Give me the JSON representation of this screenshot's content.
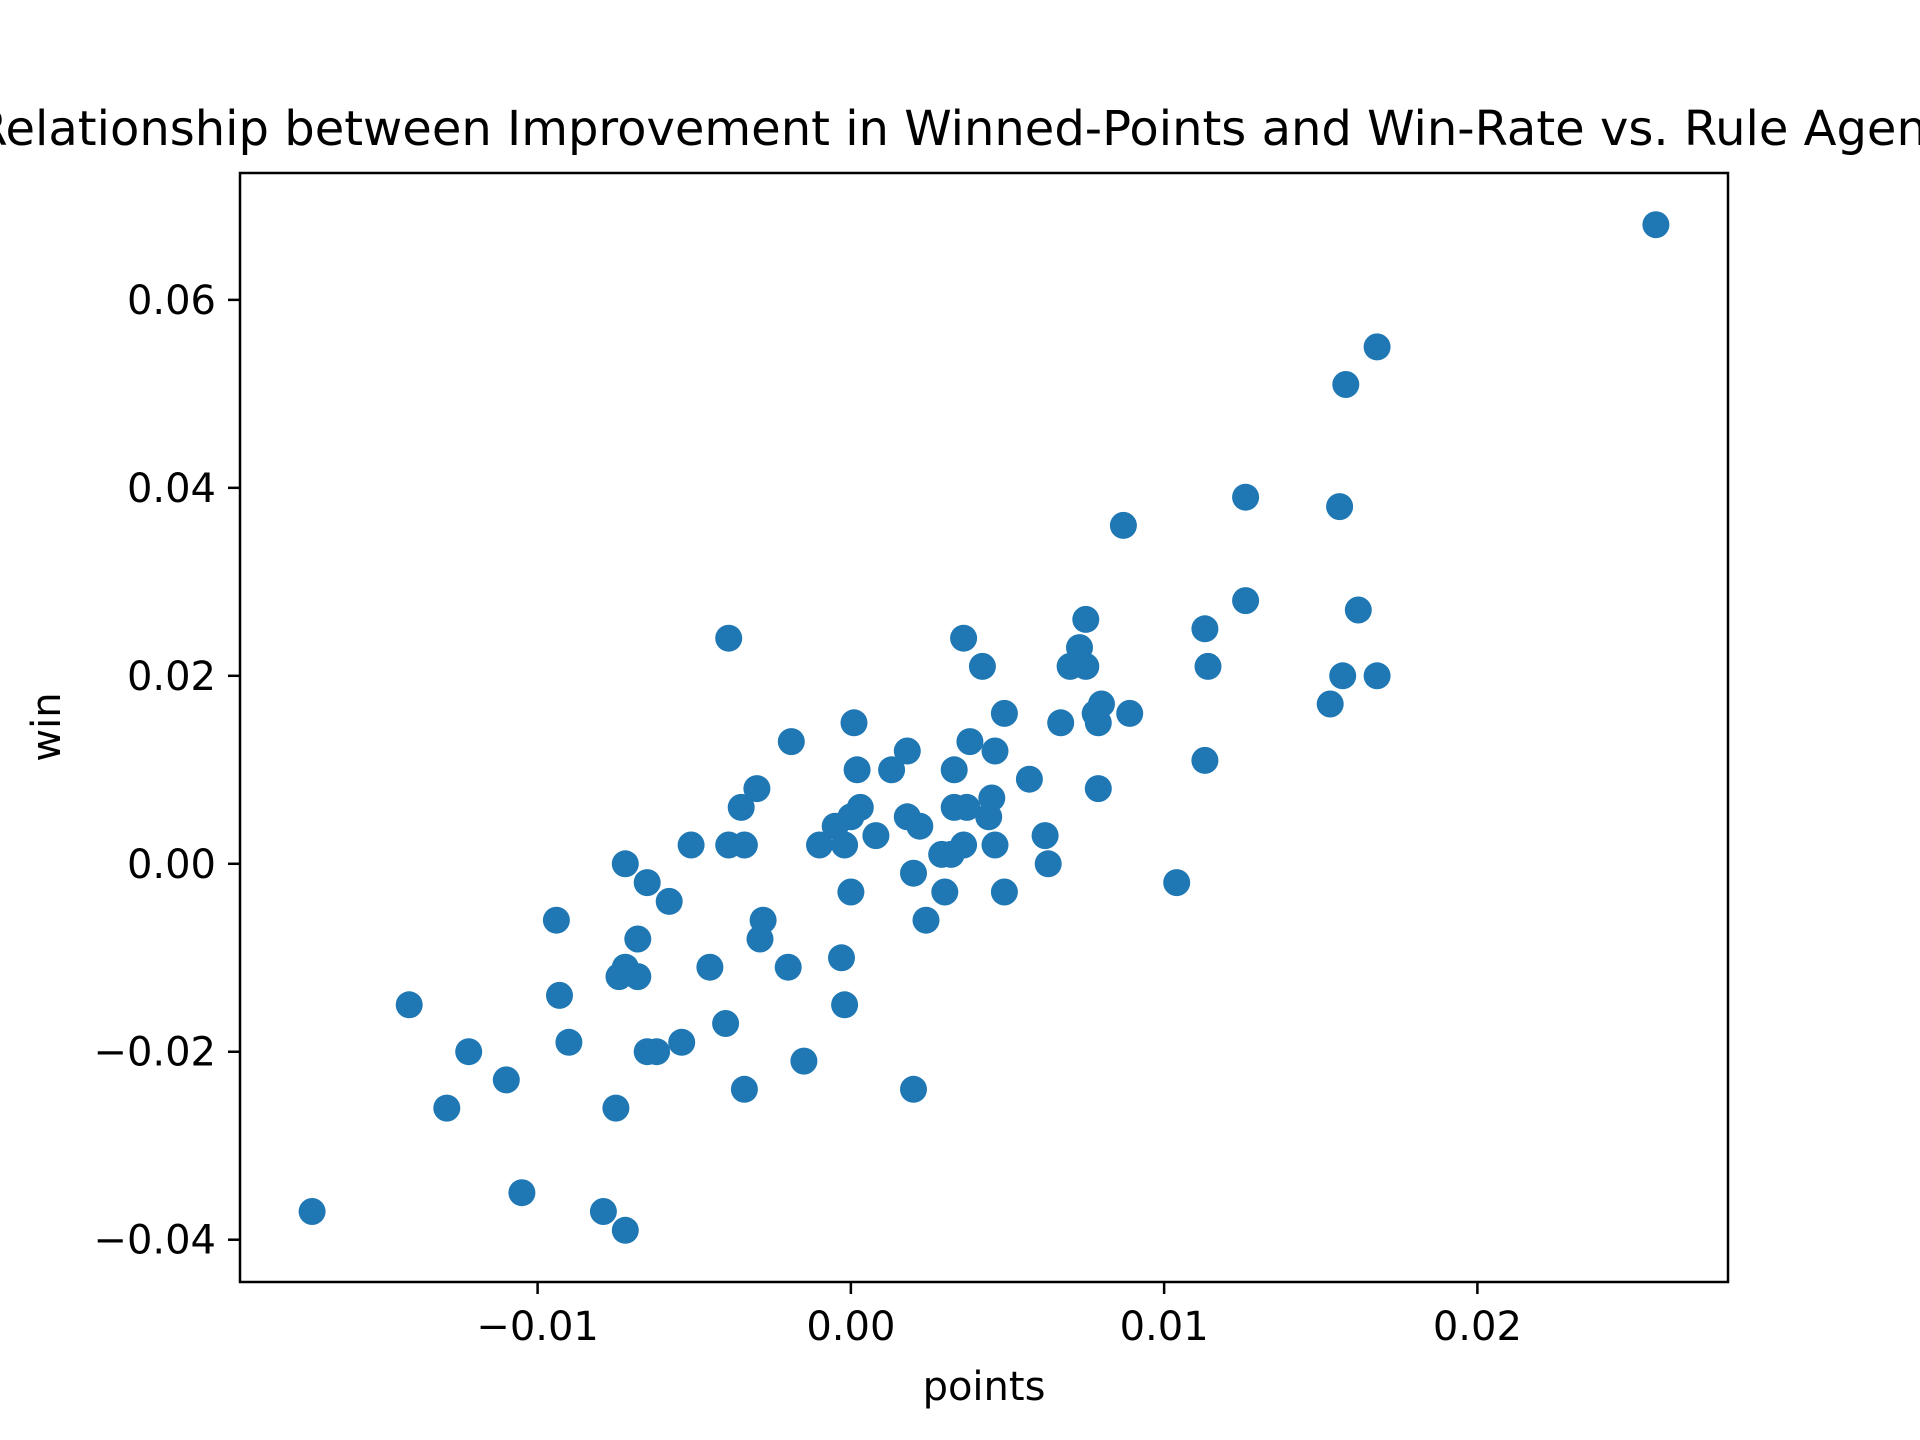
{
  "chart_data": {
    "type": "scatter",
    "title": "Relationship between Improvement in Winned-Points and Win-Rate vs. Rule Agent",
    "xlabel": "points",
    "ylabel": "win",
    "xlim": [
      -0.0195,
      0.028
    ],
    "ylim": [
      -0.0445,
      0.0735
    ],
    "xticks": [
      -0.01,
      0.0,
      0.01,
      0.02
    ],
    "xtick_labels": [
      "−0.01",
      "0.00",
      "0.01",
      "0.02"
    ],
    "yticks": [
      -0.04,
      -0.02,
      0.0,
      0.02,
      0.04,
      0.06
    ],
    "ytick_labels": [
      "−0.04",
      "−0.02",
      "0.00",
      "0.02",
      "0.04",
      "0.06"
    ],
    "grid": false,
    "marker_color": "#1f77b4",
    "points": [
      {
        "x": 0.0257,
        "y": 0.068
      },
      {
        "x": 0.0168,
        "y": 0.055
      },
      {
        "x": 0.0158,
        "y": 0.051
      },
      {
        "x": 0.0126,
        "y": 0.039
      },
      {
        "x": 0.0156,
        "y": 0.038
      },
      {
        "x": 0.0087,
        "y": 0.036
      },
      {
        "x": 0.0126,
        "y": 0.028
      },
      {
        "x": 0.0162,
        "y": 0.027
      },
      {
        "x": 0.0075,
        "y": 0.026
      },
      {
        "x": 0.0113,
        "y": 0.025
      },
      {
        "x": 0.0036,
        "y": 0.024
      },
      {
        "x": -0.0039,
        "y": 0.024
      },
      {
        "x": 0.0073,
        "y": 0.023
      },
      {
        "x": 0.0114,
        "y": 0.021
      },
      {
        "x": 0.0042,
        "y": 0.021
      },
      {
        "x": 0.007,
        "y": 0.021
      },
      {
        "x": 0.0075,
        "y": 0.021
      },
      {
        "x": 0.0157,
        "y": 0.02
      },
      {
        "x": 0.0168,
        "y": 0.02
      },
      {
        "x": 0.0153,
        "y": 0.017
      },
      {
        "x": 0.008,
        "y": 0.017
      },
      {
        "x": 0.0049,
        "y": 0.016
      },
      {
        "x": 0.0078,
        "y": 0.016
      },
      {
        "x": 0.0089,
        "y": 0.016
      },
      {
        "x": 0.0001,
        "y": 0.015
      },
      {
        "x": 0.0067,
        "y": 0.015
      },
      {
        "x": 0.0079,
        "y": 0.015
      },
      {
        "x": -0.0019,
        "y": 0.013
      },
      {
        "x": 0.0038,
        "y": 0.013
      },
      {
        "x": 0.0018,
        "y": 0.012
      },
      {
        "x": 0.0046,
        "y": 0.012
      },
      {
        "x": 0.0113,
        "y": 0.011
      },
      {
        "x": 0.0002,
        "y": 0.01
      },
      {
        "x": 0.0013,
        "y": 0.01
      },
      {
        "x": 0.0033,
        "y": 0.01
      },
      {
        "x": 0.0057,
        "y": 0.009
      },
      {
        "x": -0.003,
        "y": 0.008
      },
      {
        "x": 0.0079,
        "y": 0.008
      },
      {
        "x": 0.0045,
        "y": 0.007
      },
      {
        "x": -0.0035,
        "y": 0.006
      },
      {
        "x": 0.0003,
        "y": 0.006
      },
      {
        "x": 0.0033,
        "y": 0.006
      },
      {
        "x": 0.0037,
        "y": 0.006
      },
      {
        "x": 0.0018,
        "y": 0.005
      },
      {
        "x": 0.0044,
        "y": 0.005
      },
      {
        "x": 0.0,
        "y": 0.005
      },
      {
        "x": -0.0005,
        "y": 0.004
      },
      {
        "x": 0.0022,
        "y": 0.004
      },
      {
        "x": 0.0008,
        "y": 0.003
      },
      {
        "x": 0.0062,
        "y": 0.003
      },
      {
        "x": -0.0051,
        "y": 0.002
      },
      {
        "x": -0.0039,
        "y": 0.002
      },
      {
        "x": -0.0034,
        "y": 0.002
      },
      {
        "x": -0.001,
        "y": 0.002
      },
      {
        "x": -0.0002,
        "y": 0.002
      },
      {
        "x": 0.0036,
        "y": 0.002
      },
      {
        "x": 0.0046,
        "y": 0.002
      },
      {
        "x": 0.0029,
        "y": 0.001
      },
      {
        "x": 0.0032,
        "y": 0.001
      },
      {
        "x": -0.0072,
        "y": 0.0
      },
      {
        "x": 0.0063,
        "y": 0.0
      },
      {
        "x": 0.002,
        "y": -0.001
      },
      {
        "x": -0.0065,
        "y": -0.002
      },
      {
        "x": 0.0104,
        "y": -0.002
      },
      {
        "x": 0.0,
        "y": -0.003
      },
      {
        "x": 0.003,
        "y": -0.003
      },
      {
        "x": 0.0049,
        "y": -0.003
      },
      {
        "x": -0.0058,
        "y": -0.004
      },
      {
        "x": -0.0094,
        "y": -0.006
      },
      {
        "x": -0.0028,
        "y": -0.006
      },
      {
        "x": 0.0024,
        "y": -0.006
      },
      {
        "x": -0.0068,
        "y": -0.008
      },
      {
        "x": -0.0029,
        "y": -0.008
      },
      {
        "x": -0.0003,
        "y": -0.01
      },
      {
        "x": -0.0045,
        "y": -0.011
      },
      {
        "x": -0.002,
        "y": -0.011
      },
      {
        "x": -0.0072,
        "y": -0.011
      },
      {
        "x": -0.0074,
        "y": -0.012
      },
      {
        "x": -0.0068,
        "y": -0.012
      },
      {
        "x": -0.0093,
        "y": -0.014
      },
      {
        "x": -0.0141,
        "y": -0.015
      },
      {
        "x": -0.0002,
        "y": -0.015
      },
      {
        "x": -0.004,
        "y": -0.017
      },
      {
        "x": -0.009,
        "y": -0.019
      },
      {
        "x": -0.0054,
        "y": -0.019
      },
      {
        "x": -0.0122,
        "y": -0.02
      },
      {
        "x": -0.0065,
        "y": -0.02
      },
      {
        "x": -0.0062,
        "y": -0.02
      },
      {
        "x": -0.0015,
        "y": -0.021
      },
      {
        "x": -0.011,
        "y": -0.023
      },
      {
        "x": -0.0034,
        "y": -0.024
      },
      {
        "x": 0.002,
        "y": -0.024
      },
      {
        "x": -0.0129,
        "y": -0.026
      },
      {
        "x": -0.0075,
        "y": -0.026
      },
      {
        "x": -0.0105,
        "y": -0.035
      },
      {
        "x": -0.0079,
        "y": -0.037
      },
      {
        "x": -0.0172,
        "y": -0.037
      },
      {
        "x": -0.0072,
        "y": -0.039
      }
    ]
  }
}
